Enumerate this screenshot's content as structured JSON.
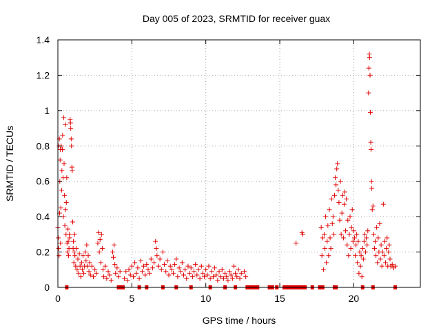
{
  "chart_data": {
    "type": "scatter",
    "title": "Day 005 of 2023, SRMTID for receiver guax",
    "xlabel": "GPS time / hours",
    "ylabel": "SRMTID / TECUs",
    "xlim": [
      0,
      24.5
    ],
    "ylim": [
      0,
      1.4
    ],
    "x_ticks": [
      0,
      5,
      10,
      15,
      20
    ],
    "x_tick_labels": [
      "0",
      "5",
      "10",
      "15",
      "20"
    ],
    "y_ticks": [
      0,
      0.2,
      0.4,
      0.6,
      0.8,
      1.0,
      1.2,
      1.4
    ],
    "y_tick_labels": [
      "0",
      "0.2",
      "0.4",
      "0.6",
      "0.8",
      "1",
      "1.2",
      "1.4"
    ],
    "grid": true,
    "marker": "plus",
    "color": "#e00000",
    "series": [
      {
        "name": "SRMTID",
        "points": [
          [
            0.0,
            0.34
          ],
          [
            0.03,
            0.28
          ],
          [
            0.05,
            0.22
          ],
          [
            0.07,
            0.8
          ],
          [
            0.08,
            0.18
          ],
          [
            0.1,
            0.84
          ],
          [
            0.12,
            0.42
          ],
          [
            0.13,
            0.6
          ],
          [
            0.15,
            0.72
          ],
          [
            0.17,
            0.78
          ],
          [
            0.18,
            0.25
          ],
          [
            0.2,
            0.45
          ],
          [
            0.22,
            0.8
          ],
          [
            0.25,
            0.55
          ],
          [
            0.27,
            0.66
          ],
          [
            0.3,
            0.78
          ],
          [
            0.32,
            0.86
          ],
          [
            0.35,
            0.62
          ],
          [
            0.37,
            0.4
          ],
          [
            0.4,
            0.96
          ],
          [
            0.42,
            0.7
          ],
          [
            0.45,
            0.52
          ],
          [
            0.47,
            0.35
          ],
          [
            0.5,
            0.92
          ],
          [
            0.52,
            0.44
          ],
          [
            0.55,
            0.3
          ],
          [
            0.57,
            0.48
          ],
          [
            0.6,
            0.62
          ],
          [
            0.62,
            0.25
          ],
          [
            0.65,
            0.2
          ],
          [
            0.68,
            0.33
          ],
          [
            0.7,
            0.26
          ],
          [
            0.72,
            0.18
          ],
          [
            0.75,
            0.22
          ],
          [
            0.78,
            0.3
          ],
          [
            0.8,
            0.28
          ],
          [
            0.83,
            0.95
          ],
          [
            0.85,
            0.93
          ],
          [
            0.87,
            0.9
          ],
          [
            0.9,
            0.84
          ],
          [
            0.92,
            0.8
          ],
          [
            0.95,
            0.68
          ],
          [
            0.97,
            0.66
          ],
          [
            1.0,
            0.37
          ],
          [
            1.03,
            0.22
          ],
          [
            1.05,
            0.26
          ],
          [
            1.08,
            0.14
          ],
          [
            1.1,
            0.2
          ],
          [
            1.13,
            0.3
          ],
          [
            1.15,
            0.18
          ],
          [
            1.2,
            0.12
          ],
          [
            1.25,
            0.22
          ],
          [
            1.3,
            0.1
          ],
          [
            1.35,
            0.16
          ],
          [
            1.4,
            0.08
          ],
          [
            1.45,
            0.19
          ],
          [
            1.5,
            0.12
          ],
          [
            1.55,
            0.06
          ],
          [
            1.6,
            0.14
          ],
          [
            1.65,
            0.1
          ],
          [
            1.7,
            0.18
          ],
          [
            1.75,
            0.08
          ],
          [
            1.8,
            0.12
          ],
          [
            1.85,
            0.2
          ],
          [
            1.9,
            0.15
          ],
          [
            1.95,
            0.24
          ],
          [
            2.0,
            0.12
          ],
          [
            2.05,
            0.18
          ],
          [
            2.1,
            0.09
          ],
          [
            2.15,
            0.14
          ],
          [
            2.2,
            0.07
          ],
          [
            2.3,
            0.12
          ],
          [
            2.4,
            0.06
          ],
          [
            2.5,
            0.1
          ],
          [
            2.6,
            0.08
          ],
          [
            2.7,
            0.25
          ],
          [
            2.75,
            0.31
          ],
          [
            2.8,
            0.2
          ],
          [
            2.85,
            0.27
          ],
          [
            2.9,
            0.14
          ],
          [
            2.95,
            0.3
          ],
          [
            3.0,
            0.22
          ],
          [
            3.05,
            0.1
          ],
          [
            3.1,
            0.06
          ],
          [
            3.2,
            0.12
          ],
          [
            3.3,
            0.05
          ],
          [
            3.4,
            0.09
          ],
          [
            3.5,
            0.07
          ],
          [
            3.6,
            0.04
          ],
          [
            3.7,
            0.2
          ],
          [
            3.75,
            0.17
          ],
          [
            3.8,
            0.24
          ],
          [
            3.85,
            0.13
          ],
          [
            3.9,
            0.08
          ],
          [
            4.0,
            0.11
          ],
          [
            4.1,
            0.06
          ],
          [
            4.2,
            0.09
          ],
          [
            4.5,
            0.05
          ],
          [
            4.6,
            0.09
          ],
          [
            4.7,
            0.04
          ],
          [
            4.8,
            0.1
          ],
          [
            4.9,
            0.07
          ],
          [
            5.0,
            0.12
          ],
          [
            5.1,
            0.06
          ],
          [
            5.2,
            0.14
          ],
          [
            5.3,
            0.08
          ],
          [
            5.4,
            0.11
          ],
          [
            5.5,
            0.05
          ],
          [
            5.6,
            0.15
          ],
          [
            5.7,
            0.09
          ],
          [
            5.8,
            0.12
          ],
          [
            5.9,
            0.07
          ],
          [
            6.0,
            0.13
          ],
          [
            6.1,
            0.1
          ],
          [
            6.2,
            0.08
          ],
          [
            6.3,
            0.16
          ],
          [
            6.4,
            0.11
          ],
          [
            6.5,
            0.14
          ],
          [
            6.6,
            0.26
          ],
          [
            6.65,
            0.22
          ],
          [
            6.7,
            0.18
          ],
          [
            6.8,
            0.12
          ],
          [
            6.9,
            0.16
          ],
          [
            7.0,
            0.1
          ],
          [
            7.1,
            0.2
          ],
          [
            7.2,
            0.13
          ],
          [
            7.3,
            0.09
          ],
          [
            7.4,
            0.15
          ],
          [
            7.5,
            0.07
          ],
          [
            7.6,
            0.12
          ],
          [
            7.7,
            0.1
          ],
          [
            7.8,
            0.08
          ],
          [
            7.9,
            0.13
          ],
          [
            8.0,
            0.16
          ],
          [
            8.1,
            0.06
          ],
          [
            8.2,
            0.11
          ],
          [
            8.3,
            0.09
          ],
          [
            8.4,
            0.14
          ],
          [
            8.5,
            0.07
          ],
          [
            8.6,
            0.1
          ],
          [
            8.7,
            0.05
          ],
          [
            8.8,
            0.12
          ],
          [
            8.9,
            0.08
          ],
          [
            9.0,
            0.11
          ],
          [
            9.1,
            0.06
          ],
          [
            9.2,
            0.09
          ],
          [
            9.3,
            0.13
          ],
          [
            9.4,
            0.07
          ],
          [
            9.5,
            0.1
          ],
          [
            9.6,
            0.05
          ],
          [
            9.7,
            0.12
          ],
          [
            9.8,
            0.08
          ],
          [
            9.9,
            0.06
          ],
          [
            10.0,
            0.1
          ],
          [
            10.1,
            0.07
          ],
          [
            10.2,
            0.12
          ],
          [
            10.3,
            0.05
          ],
          [
            10.4,
            0.09
          ],
          [
            10.5,
            0.06
          ],
          [
            10.6,
            0.11
          ],
          [
            10.7,
            0.07
          ],
          [
            10.8,
            0.04
          ],
          [
            10.9,
            0.09
          ],
          [
            11.0,
            0.06
          ],
          [
            11.1,
            0.1
          ],
          [
            11.2,
            0.05
          ],
          [
            11.3,
            0.08
          ],
          [
            11.4,
            0.06
          ],
          [
            11.5,
            0.04
          ],
          [
            11.6,
            0.09
          ],
          [
            11.7,
            0.07
          ],
          [
            11.8,
            0.05
          ],
          [
            11.9,
            0.12
          ],
          [
            12.0,
            0.08
          ],
          [
            12.1,
            0.06
          ],
          [
            12.2,
            0.1
          ],
          [
            12.3,
            0.05
          ],
          [
            12.4,
            0.08
          ],
          [
            12.6,
            0.09
          ],
          [
            12.7,
            0.06
          ],
          [
            16.1,
            0.25
          ],
          [
            16.5,
            0.31
          ],
          [
            16.55,
            0.3
          ],
          [
            17.8,
            0.34
          ],
          [
            17.85,
            0.18
          ],
          [
            17.9,
            0.28
          ],
          [
            17.95,
            0.1
          ],
          [
            18.0,
            0.3
          ],
          [
            18.05,
            0.22
          ],
          [
            18.1,
            0.4
          ],
          [
            18.15,
            0.14
          ],
          [
            18.2,
            0.26
          ],
          [
            18.25,
            0.35
          ],
          [
            18.3,
            0.18
          ],
          [
            18.35,
            0.44
          ],
          [
            18.4,
            0.28
          ],
          [
            18.45,
            0.22
          ],
          [
            18.5,
            0.5
          ],
          [
            18.55,
            0.36
          ],
          [
            18.6,
            0.4
          ],
          [
            18.65,
            0.3
          ],
          [
            18.7,
            0.52
          ],
          [
            18.75,
            0.62
          ],
          [
            18.8,
            0.58
          ],
          [
            18.85,
            0.67
          ],
          [
            18.9,
            0.7
          ],
          [
            18.95,
            0.55
          ],
          [
            19.0,
            0.48
          ],
          [
            19.05,
            0.38
          ],
          [
            19.1,
            0.6
          ],
          [
            19.15,
            0.3
          ],
          [
            19.2,
            0.42
          ],
          [
            19.25,
            0.52
          ],
          [
            19.3,
            0.28
          ],
          [
            19.35,
            0.47
          ],
          [
            19.4,
            0.54
          ],
          [
            19.45,
            0.32
          ],
          [
            19.5,
            0.5
          ],
          [
            19.55,
            0.24
          ],
          [
            19.6,
            0.38
          ],
          [
            19.65,
            0.18
          ],
          [
            19.7,
            0.3
          ],
          [
            19.75,
            0.4
          ],
          [
            19.8,
            0.22
          ],
          [
            19.85,
            0.34
          ],
          [
            19.9,
            0.44
          ],
          [
            19.95,
            0.26
          ],
          [
            20.0,
            0.32
          ],
          [
            20.05,
            0.28
          ],
          [
            20.1,
            0.18
          ],
          [
            20.15,
            0.24
          ],
          [
            20.2,
            0.3
          ],
          [
            20.25,
            0.14
          ],
          [
            20.3,
            0.26
          ],
          [
            20.35,
            0.08
          ],
          [
            20.4,
            0.2
          ],
          [
            20.45,
            0.12
          ],
          [
            20.5,
            0.18
          ],
          [
            20.55,
            0.06
          ],
          [
            20.6,
            0.22
          ],
          [
            20.65,
            0.16
          ],
          [
            20.7,
            0.26
          ],
          [
            20.75,
            0.3
          ],
          [
            20.8,
            0.2
          ],
          [
            20.85,
            0.28
          ],
          [
            20.9,
            0.24
          ],
          [
            20.95,
            0.32
          ],
          [
            21.0,
            1.1
          ],
          [
            21.02,
            1.24
          ],
          [
            21.05,
            1.32
          ],
          [
            21.07,
            1.3
          ],
          [
            21.1,
            1.2
          ],
          [
            21.12,
            0.99
          ],
          [
            21.15,
            0.82
          ],
          [
            21.17,
            0.78
          ],
          [
            21.2,
            0.6
          ],
          [
            21.22,
            0.56
          ],
          [
            21.25,
            0.44
          ],
          [
            21.3,
            0.46
          ],
          [
            21.35,
            0.3
          ],
          [
            21.4,
            0.22
          ],
          [
            21.45,
            0.26
          ],
          [
            21.5,
            0.18
          ],
          [
            21.55,
            0.34
          ],
          [
            21.6,
            0.14
          ],
          [
            21.65,
            0.28
          ],
          [
            21.7,
            0.2
          ],
          [
            21.75,
            0.36
          ],
          [
            21.8,
            0.16
          ],
          [
            21.85,
            0.24
          ],
          [
            21.9,
            0.12
          ],
          [
            21.95,
            0.2
          ],
          [
            22.0,
            0.47
          ],
          [
            22.05,
            0.18
          ],
          [
            22.1,
            0.26
          ],
          [
            22.15,
            0.14
          ],
          [
            22.2,
            0.22
          ],
          [
            22.25,
            0.28
          ],
          [
            22.3,
            0.12
          ],
          [
            22.35,
            0.2
          ],
          [
            22.4,
            0.24
          ],
          [
            22.45,
            0.16
          ],
          [
            22.5,
            0.12
          ],
          [
            22.6,
            0.13
          ],
          [
            22.7,
            0.11
          ],
          [
            22.8,
            0.12
          ]
        ]
      },
      {
        "name": "zero-level",
        "x": [
          0.6,
          4.1,
          4.2,
          4.3,
          4.4,
          5.5,
          6.0,
          7.1,
          8.0,
          9.0,
          10.3,
          11.3,
          12.0,
          12.8,
          12.9,
          13.0,
          13.1,
          13.2,
          13.3,
          13.4,
          13.5,
          14.3,
          14.5,
          14.8,
          15.3,
          15.5,
          15.7,
          15.9,
          16.0,
          16.1,
          16.2,
          16.3,
          16.4,
          16.5,
          16.6,
          16.7,
          17.2,
          17.7,
          17.9,
          18.7,
          18.8,
          20.6,
          21.3,
          22.8
        ]
      }
    ]
  }
}
